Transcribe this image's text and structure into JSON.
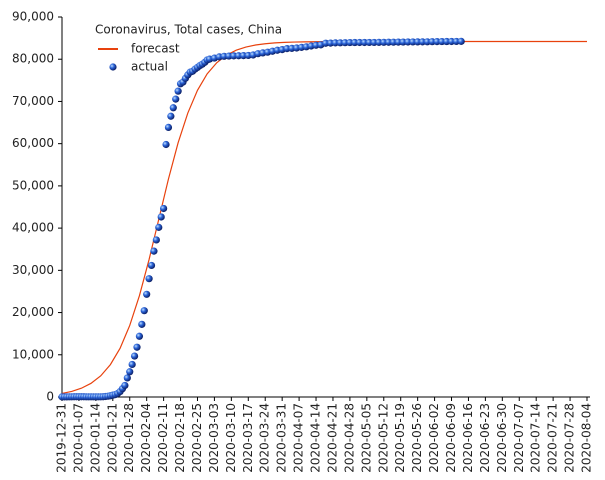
{
  "chart_data": {
    "type": "line",
    "title": "Coronavirus, Total cases, China",
    "legend": "upper left",
    "xlim": [
      "2019-12-31",
      "2020-08-04"
    ],
    "xticks": [
      "2019-12-31",
      "2020-01-07",
      "2020-01-14",
      "2020-01-21",
      "2020-01-28",
      "2020-02-04",
      "2020-02-11",
      "2020-02-18",
      "2020-02-25",
      "2020-03-03",
      "2020-03-10",
      "2020-03-17",
      "2020-03-24",
      "2020-03-31",
      "2020-04-07",
      "2020-04-14",
      "2020-04-21",
      "2020-04-28",
      "2020-05-05",
      "2020-05-12",
      "2020-05-19",
      "2020-05-26",
      "2020-06-02",
      "2020-06-09",
      "2020-06-16",
      "2020-06-23",
      "2020-06-30",
      "2020-07-07",
      "2020-07-14",
      "2020-07-21",
      "2020-07-28",
      "2020-08-04"
    ],
    "ylim": [
      0,
      90000
    ],
    "yticks": [
      0,
      {
        "value": 10000,
        "label": "10,000"
      },
      {
        "value": 20000,
        "label": "20,000"
      },
      {
        "value": 30000,
        "label": "30,000"
      },
      {
        "value": 40000,
        "label": "40,000"
      },
      {
        "value": 50000,
        "label": "50,000"
      },
      {
        "value": 60000,
        "label": "60,000"
      },
      {
        "value": 70000,
        "label": "70,000"
      },
      {
        "value": 80000,
        "label": "80,000"
      },
      {
        "value": 90000,
        "label": "90,000"
      }
    ],
    "series": [
      {
        "name": "forecast",
        "color": "#e8420e",
        "style": "line",
        "x": [
          "2019-12-31",
          "2020-01-04",
          "2020-01-08",
          "2020-01-12",
          "2020-01-16",
          "2020-01-20",
          "2020-01-24",
          "2020-01-28",
          "2020-02-01",
          "2020-02-05",
          "2020-02-09",
          "2020-02-13",
          "2020-02-17",
          "2020-02-21",
          "2020-02-25",
          "2020-02-29",
          "2020-03-04",
          "2020-03-08",
          "2020-03-12",
          "2020-03-16",
          "2020-03-20",
          "2020-03-24",
          "2020-03-28",
          "2020-04-01",
          "2020-04-05",
          "2020-04-09",
          "2020-04-13",
          "2020-04-17",
          "2020-04-21",
          "2020-04-25",
          "2020-04-29",
          "2020-05-29",
          "2020-06-28",
          "2020-08-04"
        ],
        "values": [
          838,
          1320,
          2077,
          3238,
          5010,
          7675,
          11534,
          16942,
          23989,
          32585,
          42100,
          51625,
          60229,
          67252,
          72650,
          76545,
          79188,
          80962,
          82130,
          82882,
          83366,
          83669,
          83864,
          83988,
          84066,
          84115,
          84145,
          84165,
          84177,
          84185,
          84190,
          84199,
          84200,
          84200
        ]
      },
      {
        "name": "actual",
        "color": "#1a4fc4",
        "style": "markers",
        "x": [
          "2019-12-31",
          "2020-01-01",
          "2020-01-02",
          "2020-01-03",
          "2020-01-04",
          "2020-01-05",
          "2020-01-06",
          "2020-01-07",
          "2020-01-08",
          "2020-01-09",
          "2020-01-10",
          "2020-01-11",
          "2020-01-12",
          "2020-01-13",
          "2020-01-14",
          "2020-01-15",
          "2020-01-16",
          "2020-01-17",
          "2020-01-18",
          "2020-01-19",
          "2020-01-20",
          "2020-01-21",
          "2020-01-22",
          "2020-01-23",
          "2020-01-24",
          "2020-01-25",
          "2020-01-26",
          "2020-01-27",
          "2020-01-28",
          "2020-01-29",
          "2020-01-30",
          "2020-01-31",
          "2020-02-01",
          "2020-02-02",
          "2020-02-03",
          "2020-02-04",
          "2020-02-05",
          "2020-02-06",
          "2020-02-07",
          "2020-02-08",
          "2020-02-09",
          "2020-02-10",
          "2020-02-11",
          "2020-02-12",
          "2020-02-13",
          "2020-02-14",
          "2020-02-15",
          "2020-02-16",
          "2020-02-17",
          "2020-02-18",
          "2020-02-19",
          "2020-02-20",
          "2020-02-21",
          "2020-02-22",
          "2020-02-23",
          "2020-02-24",
          "2020-02-25",
          "2020-02-26",
          "2020-02-27",
          "2020-02-28",
          "2020-02-29",
          "2020-03-01",
          "2020-03-03",
          "2020-03-05",
          "2020-03-07",
          "2020-03-09",
          "2020-03-11",
          "2020-03-13",
          "2020-03-15",
          "2020-03-17",
          "2020-03-19",
          "2020-03-21",
          "2020-03-23",
          "2020-03-25",
          "2020-03-27",
          "2020-03-29",
          "2020-03-31",
          "2020-04-02",
          "2020-04-04",
          "2020-04-06",
          "2020-04-08",
          "2020-04-10",
          "2020-04-12",
          "2020-04-14",
          "2020-04-16",
          "2020-04-18",
          "2020-04-20",
          "2020-04-22",
          "2020-04-24",
          "2020-04-26",
          "2020-04-28",
          "2020-04-30",
          "2020-05-02",
          "2020-05-04",
          "2020-05-06",
          "2020-05-08",
          "2020-05-10",
          "2020-05-12",
          "2020-05-14",
          "2020-05-16",
          "2020-05-18",
          "2020-05-20",
          "2020-05-22",
          "2020-05-24",
          "2020-05-26",
          "2020-05-28",
          "2020-05-30",
          "2020-06-01",
          "2020-06-03",
          "2020-06-05",
          "2020-06-07",
          "2020-06-09",
          "2020-06-11",
          "2020-06-13"
        ],
        "values": [
          27,
          27,
          27,
          44,
          44,
          59,
          59,
          59,
          59,
          59,
          41,
          41,
          41,
          41,
          41,
          41,
          45,
          62,
          121,
          198,
          291,
          440,
          571,
          830,
          1287,
          1975,
          2744,
          4515,
          5974,
          7711,
          9692,
          11791,
          14380,
          17205,
          20438,
          24324,
          28018,
          31161,
          34546,
          37198,
          40171,
          42638,
          44653,
          59804,
          63851,
          66492,
          68500,
          70548,
          72436,
          74185,
          74576,
          75465,
          76288,
          76936,
          77150,
          77658,
          78064,
          78497,
          78824,
          79251,
          79824,
          80026,
          80270,
          80552,
          80695,
          80754,
          80793,
          80824,
          80860,
          80894,
          81008,
          81305,
          81496,
          81661,
          81897,
          82122,
          82279,
          82511,
          82575,
          82665,
          82809,
          82941,
          83134,
          83306,
          83403,
          83787,
          83817,
          83868,
          83884,
          83912,
          83940,
          83956,
          83959,
          83966,
          83970,
          83976,
          83990,
          84010,
          84024,
          84038,
          84054,
          84063,
          84081,
          84095,
          84102,
          84106,
          84128,
          84154,
          84171,
          84177,
          84191,
          84198,
          84216,
          84228
        ]
      }
    ]
  }
}
